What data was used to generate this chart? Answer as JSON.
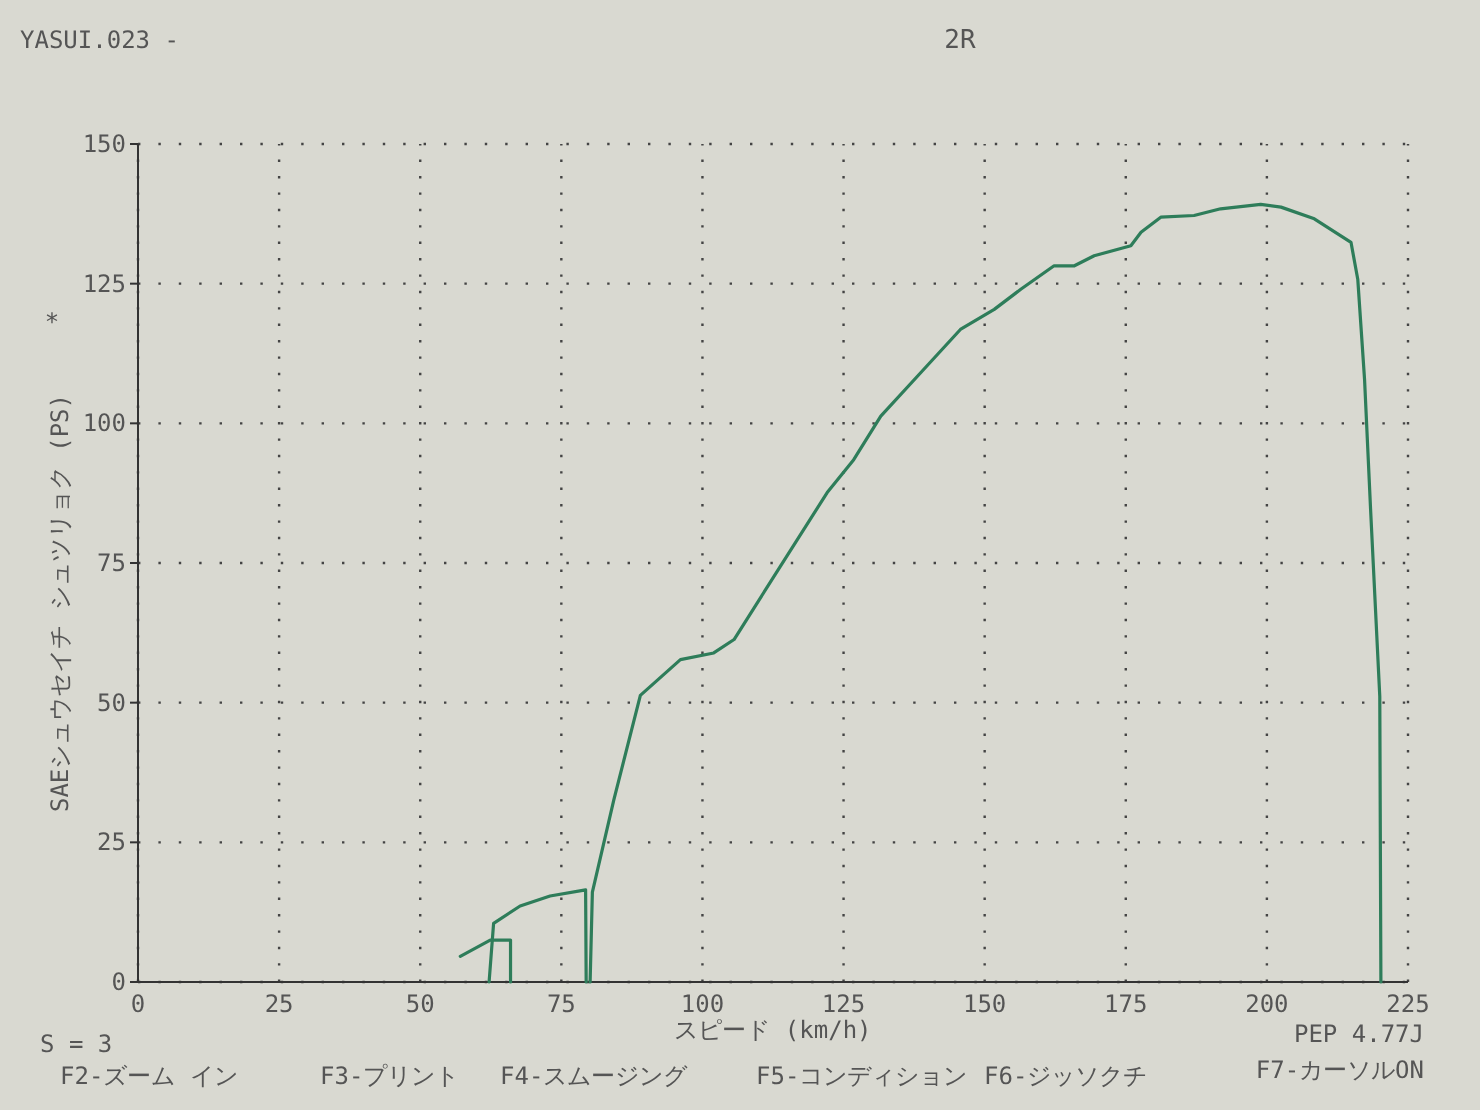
{
  "chart_data": {
    "type": "line",
    "title": "2R",
    "xlabel": "スピード (km/h)",
    "ylabel": "SAEシュウセイチ シュツリョク (PS)",
    "annotations": [
      "YASUI.023 -",
      "*",
      "S = 3",
      "PEP 4.77J",
      "F2-ズーム イン",
      "F3-プリント",
      "F4-スムージング",
      "F5-コンディション",
      "F6-ジッソクチ",
      "F7-カーソルON"
    ],
    "series": [
      {
        "color": "#2e7d5a",
        "x": [
          80.1,
          80.5,
          84.3,
          89.0,
          96.1,
          102.0,
          105.6,
          113.8,
          122.1,
          126.8,
          131.6,
          138.7,
          145.7,
          151.7,
          156.4,
          162.3,
          165.9,
          169.4,
          175.9,
          177.7,
          181.2,
          187.1,
          191.8,
          198.9,
          202.5,
          208.4,
          214.9,
          216.1,
          217.3,
          218.4,
          220.0,
          220.2
        ],
        "values": [
          0,
          16.1,
          32.6,
          51.3,
          57.7,
          58.9,
          61.3,
          74.4,
          87.6,
          93.5,
          101.3,
          109.1,
          116.8,
          120.4,
          124.0,
          128.2,
          128.2,
          130.0,
          131.8,
          134.2,
          136.9,
          137.2,
          138.4,
          139.2,
          138.7,
          136.6,
          132.4,
          125.8,
          107.9,
          84.0,
          51.1,
          0
        ]
      },
      {
        "color": "#2e7d5a",
        "x": [
          62.2,
          63.0,
          67.7,
          73.0,
          79.3,
          79.4
        ],
        "values": [
          0,
          10.5,
          13.6,
          15.4,
          16.5,
          0
        ]
      },
      {
        "color": "#2e7d5a",
        "x": [
          57.1,
          62.4,
          66.0,
          66.0
        ],
        "values": [
          4.6,
          7.5,
          7.5,
          0
        ]
      }
    ],
    "xlim": [
      0,
      225
    ],
    "xticks": [
      0,
      25,
      50,
      75,
      100,
      125,
      150,
      175,
      200,
      225
    ],
    "ylim": [
      0,
      150
    ],
    "yticks": [
      0,
      25,
      50,
      75,
      100,
      125,
      150
    ],
    "grid": true,
    "line_style": "solid",
    "marker": "none"
  }
}
